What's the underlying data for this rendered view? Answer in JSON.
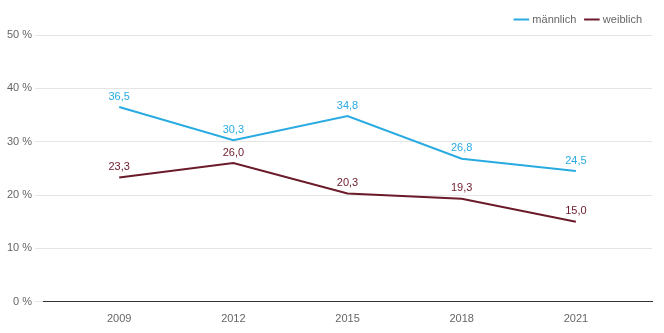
{
  "chart_data": {
    "type": "line",
    "x": [
      2009,
      2012,
      2015,
      2018,
      2021
    ],
    "series": [
      {
        "name": "männlich",
        "color": "#29ABE2",
        "values": [
          36.5,
          30.3,
          34.8,
          26.8,
          24.5
        ],
        "value_labels": [
          "36,5",
          "30,3",
          "34,8",
          "26,8",
          "24,5"
        ]
      },
      {
        "name": "weiblich",
        "color": "#6B1A2A",
        "values": [
          23.3,
          26.0,
          20.3,
          19.3,
          15.0
        ],
        "value_labels": [
          "23,3",
          "26,0",
          "20,3",
          "19,3",
          "15,0"
        ]
      }
    ],
    "xlim": [
      2007,
      2023
    ],
    "xticks": [
      2009,
      2012,
      2015,
      2018,
      2021
    ],
    "ylim": [
      0,
      50
    ],
    "yticks": [
      {
        "value": 0,
        "label": "0 %"
      },
      {
        "value": 10,
        "label": "10 %"
      },
      {
        "value": 20,
        "label": "20 %"
      },
      {
        "value": 30,
        "label": "30 %"
      },
      {
        "value": 40,
        "label": "40 %"
      },
      {
        "value": 50,
        "label": "50 %"
      }
    ],
    "grid": "y",
    "legend": "upper right",
    "data_labels": true
  }
}
